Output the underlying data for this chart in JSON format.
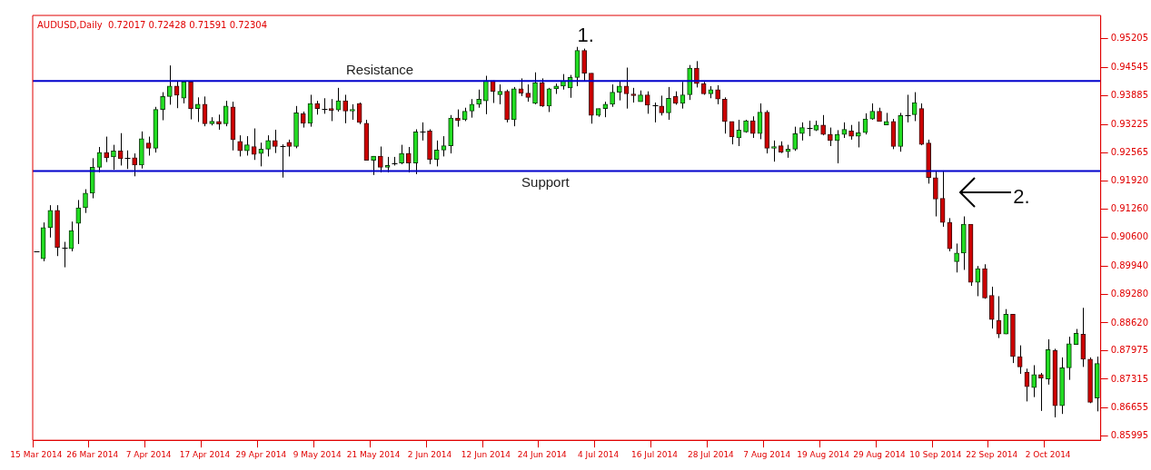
{
  "chart_data": {
    "type": "candlestick",
    "title": "AUDUSD,Daily  0.72017 0.72428 0.71591 0.72304",
    "categories": [
      "15 Mar 2014",
      null,
      null,
      null,
      null,
      null,
      null,
      null,
      "26 Mar 2014",
      null,
      null,
      null,
      null,
      null,
      null,
      null,
      "7 Apr 2014",
      null,
      null,
      null,
      null,
      null,
      null,
      null,
      "17 Apr 2014",
      null,
      null,
      null,
      null,
      null,
      null,
      null,
      "29 Apr 2014",
      null,
      null,
      null,
      null,
      null,
      null,
      null,
      "9 May 2014",
      null,
      null,
      null,
      null,
      null,
      null,
      null,
      "21 May 2014",
      null,
      null,
      null,
      null,
      null,
      null,
      null,
      "2 Jun 2014",
      null,
      null,
      null,
      null,
      null,
      null,
      null,
      "12 Jun 2014",
      null,
      null,
      null,
      null,
      null,
      null,
      null,
      "24 Jun 2014",
      null,
      null,
      null,
      null,
      null,
      null,
      null,
      "4 Jul 2014",
      null,
      null,
      null,
      null,
      null,
      null,
      null,
      "16 Jul 2014",
      null,
      null,
      null,
      null,
      null,
      null,
      null,
      "28 Jul 2014",
      null,
      null,
      null,
      null,
      null,
      null,
      null,
      "7 Aug 2014",
      null,
      null,
      null,
      null,
      null,
      null,
      null,
      "19 Aug 2014",
      null,
      null,
      null,
      null,
      null,
      null,
      null,
      "29 Aug 2014",
      null,
      null,
      null,
      null,
      null,
      null,
      null,
      "10 Sep 2014",
      null,
      null,
      null,
      null,
      null,
      null,
      null,
      "22 Sep 2014",
      null,
      null,
      null,
      null,
      null,
      null,
      null,
      "2 Oct 2014",
      null,
      null,
      null,
      null,
      null,
      null,
      null
    ],
    "ohlc": [
      [
        0.9028,
        0.9028,
        0.9028,
        0.9028
      ],
      [
        0.9011,
        0.9095,
        0.9005,
        0.9083
      ],
      [
        0.9083,
        0.9135,
        0.906,
        0.9123
      ],
      [
        0.9123,
        0.9135,
        0.9017,
        0.9037
      ],
      [
        0.9037,
        0.905,
        0.8991,
        0.9037
      ],
      [
        0.9034,
        0.9097,
        0.9028,
        0.9076
      ],
      [
        0.9093,
        0.9147,
        0.9045,
        0.9129
      ],
      [
        0.9129,
        0.9172,
        0.9117,
        0.9163
      ],
      [
        0.9163,
        0.9244,
        0.9151,
        0.9223
      ],
      [
        0.9223,
        0.927,
        0.9211,
        0.9257
      ],
      [
        0.9257,
        0.9294,
        0.9235,
        0.9245
      ],
      [
        0.9247,
        0.9275,
        0.9217,
        0.9261
      ],
      [
        0.9261,
        0.9302,
        0.9227,
        0.9243
      ],
      [
        0.9245,
        0.9262,
        0.9219,
        0.9245
      ],
      [
        0.9245,
        0.9255,
        0.9202,
        0.9228
      ],
      [
        0.9228,
        0.9306,
        0.922,
        0.9289
      ],
      [
        0.9279,
        0.9294,
        0.925,
        0.9267
      ],
      [
        0.9267,
        0.9363,
        0.9257,
        0.9357
      ],
      [
        0.9357,
        0.9397,
        0.9332,
        0.9387
      ],
      [
        0.9387,
        0.9459,
        0.9368,
        0.9411
      ],
      [
        0.9411,
        0.9423,
        0.936,
        0.939
      ],
      [
        0.9383,
        0.9423,
        0.9371,
        0.9421
      ],
      [
        0.9421,
        0.9423,
        0.9334,
        0.9359
      ],
      [
        0.9359,
        0.9385,
        0.9328,
        0.9369
      ],
      [
        0.9369,
        0.9387,
        0.9318,
        0.9324
      ],
      [
        0.9324,
        0.9339,
        0.932,
        0.933
      ],
      [
        0.9329,
        0.9345,
        0.931,
        0.9323
      ],
      [
        0.9324,
        0.9377,
        0.9318,
        0.9365
      ],
      [
        0.9363,
        0.9375,
        0.9262,
        0.9287
      ],
      [
        0.9283,
        0.9297,
        0.9248,
        0.9261
      ],
      [
        0.9261,
        0.9295,
        0.925,
        0.9275
      ],
      [
        0.9271,
        0.9313,
        0.924,
        0.9253
      ],
      [
        0.9255,
        0.928,
        0.9225,
        0.9265
      ],
      [
        0.9265,
        0.9297,
        0.9248,
        0.9285
      ],
      [
        0.9285,
        0.931,
        0.9256,
        0.9271
      ],
      [
        0.9272,
        0.9276,
        0.9199,
        0.9272
      ],
      [
        0.9281,
        0.9287,
        0.9248,
        0.9271
      ],
      [
        0.9271,
        0.9365,
        0.9267,
        0.9349
      ],
      [
        0.9347,
        0.9352,
        0.9315,
        0.9325
      ],
      [
        0.9325,
        0.9391,
        0.9317,
        0.9371
      ],
      [
        0.9371,
        0.9377,
        0.9345,
        0.9359
      ],
      [
        0.9359,
        0.9383,
        0.9347,
        0.9359
      ],
      [
        0.9359,
        0.9381,
        0.933,
        0.9355
      ],
      [
        0.9356,
        0.9407,
        0.9352,
        0.9377
      ],
      [
        0.9377,
        0.9391,
        0.9325,
        0.9353
      ],
      [
        0.9353,
        0.9369,
        0.9333,
        0.9357
      ],
      [
        0.9371,
        0.9373,
        0.9323,
        0.9327
      ],
      [
        0.9325,
        0.9333,
        0.9239,
        0.9239
      ],
      [
        0.9239,
        0.9249,
        0.9205,
        0.9249
      ],
      [
        0.9249,
        0.9271,
        0.9211,
        0.9223
      ],
      [
        0.9223,
        0.9247,
        0.9211,
        0.9227
      ],
      [
        0.9233,
        0.9247,
        0.9227,
        0.9233
      ],
      [
        0.9233,
        0.9275,
        0.923,
        0.9255
      ],
      [
        0.9255,
        0.927,
        0.9211,
        0.9233
      ],
      [
        0.9233,
        0.9311,
        0.9207,
        0.9305
      ],
      [
        0.9305,
        0.9327,
        0.9285,
        0.9305
      ],
      [
        0.9307,
        0.9311,
        0.923,
        0.9241
      ],
      [
        0.9241,
        0.9285,
        0.9225,
        0.9263
      ],
      [
        0.9263,
        0.9295,
        0.9248,
        0.9273
      ],
      [
        0.9273,
        0.9344,
        0.9255,
        0.9337
      ],
      [
        0.9337,
        0.9357,
        0.9317,
        0.9331
      ],
      [
        0.9333,
        0.9361,
        0.933,
        0.9353
      ],
      [
        0.9353,
        0.9381,
        0.9338,
        0.9369
      ],
      [
        0.9369,
        0.9403,
        0.9361,
        0.9381
      ],
      [
        0.9377,
        0.9435,
        0.9346,
        0.9424
      ],
      [
        0.9424,
        0.9424,
        0.9372,
        0.9399
      ],
      [
        0.9391,
        0.9415,
        0.9369,
        0.9399
      ],
      [
        0.9399,
        0.9403,
        0.9327,
        0.9333
      ],
      [
        0.9333,
        0.9409,
        0.9318,
        0.9405
      ],
      [
        0.9405,
        0.9429,
        0.9388,
        0.9395
      ],
      [
        0.9395,
        0.9415,
        0.9375,
        0.9385
      ],
      [
        0.9371,
        0.9443,
        0.9369,
        0.9419
      ],
      [
        0.9419,
        0.9429,
        0.9363,
        0.9365
      ],
      [
        0.9365,
        0.9407,
        0.9351,
        0.9405
      ],
      [
        0.9405,
        0.9417,
        0.9393,
        0.9411
      ],
      [
        0.9411,
        0.9439,
        0.9403,
        0.9423
      ],
      [
        0.9407,
        0.9437,
        0.9384,
        0.9431
      ],
      [
        0.9431,
        0.9502,
        0.9411,
        0.9494
      ],
      [
        0.9494,
        0.9498,
        0.9423,
        0.9441
      ],
      [
        0.9441,
        0.9441,
        0.9324,
        0.9343
      ],
      [
        0.9343,
        0.9359,
        0.934,
        0.9359
      ],
      [
        0.9359,
        0.9375,
        0.9339,
        0.9369
      ],
      [
        0.9369,
        0.9415,
        0.9363,
        0.9397
      ],
      [
        0.9397,
        0.9423,
        0.9378,
        0.9411
      ],
      [
        0.9411,
        0.9454,
        0.9359,
        0.9393
      ],
      [
        0.9393,
        0.9407,
        0.9373,
        0.9389
      ],
      [
        0.9375,
        0.9401,
        0.9375,
        0.9391
      ],
      [
        0.9391,
        0.9399,
        0.9347,
        0.9367
      ],
      [
        0.9366,
        0.9373,
        0.9327,
        0.9366
      ],
      [
        0.9365,
        0.9389,
        0.9343,
        0.9349
      ],
      [
        0.9349,
        0.9409,
        0.9333,
        0.9383
      ],
      [
        0.9387,
        0.9399,
        0.9368,
        0.9371
      ],
      [
        0.9371,
        0.9421,
        0.9359,
        0.9391
      ],
      [
        0.9391,
        0.946,
        0.9379,
        0.9453
      ],
      [
        0.9453,
        0.9469,
        0.9408,
        0.9417
      ],
      [
        0.9417,
        0.9421,
        0.9391,
        0.9393
      ],
      [
        0.9393,
        0.9411,
        0.9383,
        0.9403
      ],
      [
        0.9403,
        0.9413,
        0.9369,
        0.9381
      ],
      [
        0.9381,
        0.9385,
        0.9301,
        0.9329
      ],
      [
        0.9329,
        0.9329,
        0.9276,
        0.9293
      ],
      [
        0.9291,
        0.9333,
        0.9272,
        0.9309
      ],
      [
        0.9305,
        0.9333,
        0.9303,
        0.9331
      ],
      [
        0.9331,
        0.9341,
        0.9291,
        0.9301
      ],
      [
        0.9301,
        0.9371,
        0.9288,
        0.9351
      ],
      [
        0.9351,
        0.9355,
        0.9255,
        0.9267
      ],
      [
        0.9267,
        0.9285,
        0.9236,
        0.9271
      ],
      [
        0.9273,
        0.9283,
        0.9256,
        0.9258
      ],
      [
        0.9259,
        0.9275,
        0.9245,
        0.9265
      ],
      [
        0.9265,
        0.9317,
        0.9261,
        0.9301
      ],
      [
        0.9301,
        0.9327,
        0.9285,
        0.9315
      ],
      [
        0.9315,
        0.9331,
        0.9295,
        0.9315
      ],
      [
        0.9309,
        0.9331,
        0.9307,
        0.9321
      ],
      [
        0.9321,
        0.9344,
        0.9297,
        0.9299
      ],
      [
        0.9299,
        0.9315,
        0.9272,
        0.9285
      ],
      [
        0.9285,
        0.9309,
        0.9232,
        0.9299
      ],
      [
        0.9299,
        0.9327,
        0.9291,
        0.9311
      ],
      [
        0.9307,
        0.9321,
        0.9287,
        0.9295
      ],
      [
        0.9295,
        0.9329,
        0.9269,
        0.9303
      ],
      [
        0.9303,
        0.9348,
        0.9299,
        0.9335
      ],
      [
        0.9335,
        0.9371,
        0.9333,
        0.9353
      ],
      [
        0.9353,
        0.9361,
        0.9329,
        0.9329
      ],
      [
        0.9321,
        0.9349,
        0.9321,
        0.9329
      ],
      [
        0.9329,
        0.9335,
        0.9265,
        0.9271
      ],
      [
        0.9271,
        0.9349,
        0.9259,
        0.9343
      ],
      [
        0.9344,
        0.9391,
        0.9327,
        0.9344
      ],
      [
        0.9345,
        0.9397,
        0.933,
        0.9373
      ],
      [
        0.9359,
        0.9371,
        0.9274,
        0.9276
      ],
      [
        0.9279,
        0.9287,
        0.9185,
        0.9199
      ],
      [
        0.9199,
        0.9213,
        0.9109,
        0.9149
      ],
      [
        0.9151,
        0.9213,
        0.9085,
        0.9095
      ],
      [
        0.9095,
        0.9105,
        0.9028,
        0.9034
      ],
      [
        0.9004,
        0.9046,
        0.8979,
        0.9024
      ],
      [
        0.9024,
        0.9109,
        0.8985,
        0.9091
      ],
      [
        0.9091,
        0.9091,
        0.8948,
        0.8956
      ],
      [
        0.8956,
        0.8994,
        0.8924,
        0.8988
      ],
      [
        0.8988,
        0.8998,
        0.8918,
        0.892
      ],
      [
        0.8926,
        0.8946,
        0.8849,
        0.887
      ],
      [
        0.8868,
        0.8924,
        0.8827,
        0.8836
      ],
      [
        0.8836,
        0.8894,
        0.8836,
        0.8882
      ],
      [
        0.8882,
        0.8882,
        0.8769,
        0.8784
      ],
      [
        0.8784,
        0.881,
        0.8744,
        0.876
      ],
      [
        0.8748,
        0.8756,
        0.868,
        0.8714
      ],
      [
        0.8712,
        0.8764,
        0.869,
        0.8742
      ],
      [
        0.8742,
        0.8746,
        0.8658,
        0.8734
      ],
      [
        0.8732,
        0.8824,
        0.8719,
        0.88
      ],
      [
        0.8798,
        0.8802,
        0.8643,
        0.867
      ],
      [
        0.867,
        0.8782,
        0.8651,
        0.8758
      ],
      [
        0.8758,
        0.883,
        0.873,
        0.8814
      ],
      [
        0.8812,
        0.8848,
        0.8812,
        0.8838
      ],
      [
        0.8836,
        0.8897,
        0.876,
        0.8778
      ],
      [
        0.8778,
        0.8782,
        0.8676,
        0.8678
      ],
      [
        0.8688,
        0.8784,
        0.8657,
        0.8768
      ]
    ],
    "ylim": [
      0.859,
      0.9575
    ],
    "yticks": [
      0.95205,
      0.94545,
      0.93885,
      0.93225,
      0.92565,
      {
        "value": 0.9192,
        "label": "0.91920"
      },
      {
        "value": 0.9126,
        "label": "0.91260"
      },
      {
        "value": 0.906,
        "label": "0.90600"
      },
      {
        "value": 0.8994,
        "label": "0.89940"
      },
      {
        "value": 0.8928,
        "label": "0.89280"
      },
      {
        "value": 0.8862,
        "label": "0.88620"
      },
      0.87975,
      0.87315,
      0.86655,
      0.85995
    ],
    "ref_lines": [
      {
        "axis": "y",
        "value": 0.9423,
        "label": "Resistance",
        "color": "#0000cc"
      },
      {
        "axis": "y",
        "value": 0.9214,
        "label": "Support",
        "color": "#0000cc"
      }
    ],
    "annotations": [
      "1.",
      "2."
    ]
  }
}
